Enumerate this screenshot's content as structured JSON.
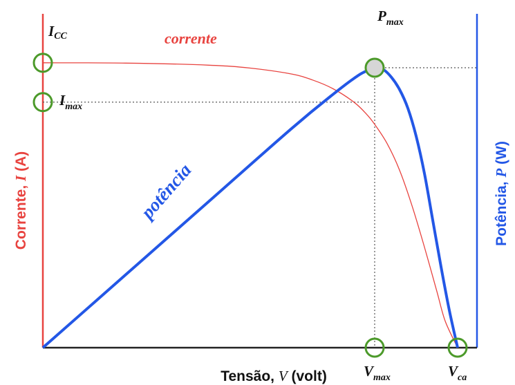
{
  "colors": {
    "current": "#e8433f",
    "power": "#2357e6",
    "marker": "#4c9a2a",
    "marker_fill_peak": "#d6d6d6",
    "axis_x": "#222222",
    "guide": "#555555"
  },
  "chart_data": {
    "type": "line",
    "title": "",
    "xlabel": {
      "prefix": "Tensão, ",
      "symbol": "V",
      "suffix": " (volt)"
    },
    "ylabel_left": {
      "prefix": "Corrente, ",
      "symbol": "I",
      "suffix": " (A)"
    },
    "ylabel_right": {
      "prefix": "Potência, ",
      "symbol": "P",
      "suffix": " (W)"
    },
    "xlim": [
      0,
      1
    ],
    "ylim": [
      0,
      1
    ],
    "grid": false,
    "legend": "none",
    "series": [
      {
        "name": "corrente",
        "axis": "left",
        "x": [
          0,
          0.2,
          0.4,
          0.5,
          0.6,
          0.65,
          0.7,
          0.75,
          0.78,
          0.8,
          0.83,
          0.86,
          0.89,
          0.92,
          0.95,
          0.97,
          1.0
        ],
        "y": [
          0.963,
          0.962,
          0.955,
          0.945,
          0.925,
          0.905,
          0.875,
          0.83,
          0.79,
          0.755,
          0.69,
          0.6,
          0.48,
          0.34,
          0.19,
          0.09,
          0.0
        ]
      },
      {
        "name": "potência",
        "axis": "right",
        "x": [
          0,
          0.2,
          0.4,
          0.6,
          0.7,
          0.76,
          0.79,
          0.8,
          0.82,
          0.84,
          0.86,
          0.88,
          0.9,
          0.92,
          0.94,
          0.96,
          0.98,
          1.0
        ],
        "y": [
          0,
          0.235,
          0.47,
          0.705,
          0.815,
          0.875,
          0.895,
          0.9,
          0.895,
          0.87,
          0.83,
          0.77,
          0.68,
          0.56,
          0.41,
          0.26,
          0.12,
          0.0
        ]
      }
    ],
    "annotations": {
      "isc": {
        "sub": "CC",
        "main": "I",
        "x": 0,
        "y": 0.963
      },
      "imax": {
        "sub": "max",
        "main": "I",
        "x": 0,
        "y": 0.83
      },
      "pmax": {
        "sub": "max",
        "main": "P",
        "x": 0.8,
        "y": 0.9
      },
      "vmax": {
        "sub": "max",
        "main": "V",
        "x": 0.8,
        "y": 0
      },
      "voc": {
        "sub": "ca",
        "main": "V",
        "x": 1.0,
        "y": 0
      }
    }
  }
}
